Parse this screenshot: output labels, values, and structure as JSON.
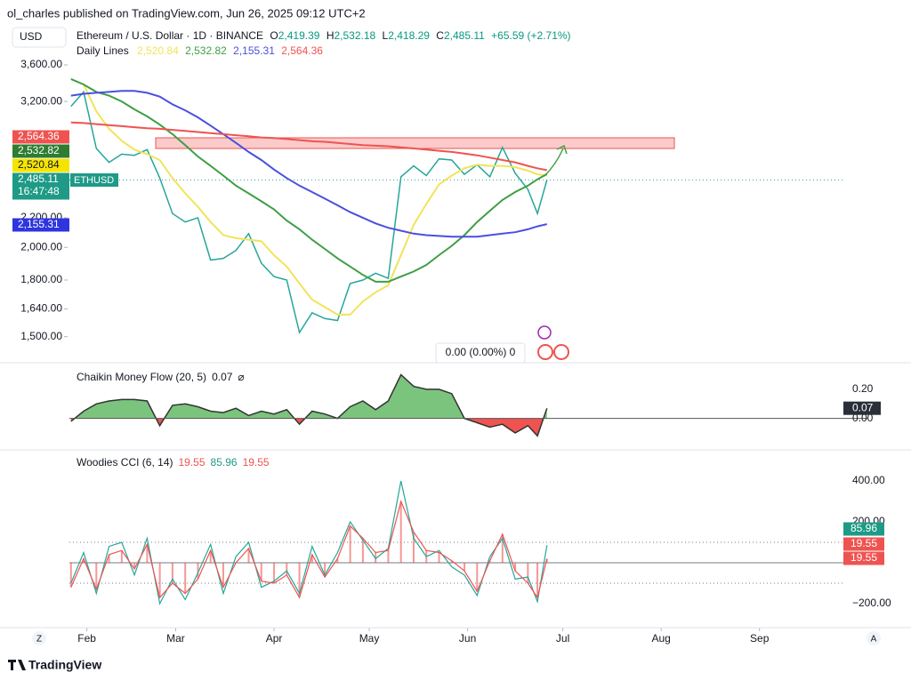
{
  "header": {
    "publisher": "ol_charles published on TradingView.com, Jun 26, 2025 09:12 UTC+2",
    "currency": "USD",
    "brand": "TradingView",
    "left_icon": "Z",
    "right_icon": "A"
  },
  "symbol_bar": {
    "title": "Ethereum / U.S. Dollar · 1D · BINANCE",
    "ohlc": [
      {
        "key": "O",
        "value": "2,419.39"
      },
      {
        "key": "H",
        "value": "2,532.18"
      },
      {
        "key": "L",
        "value": "2,418.29"
      },
      {
        "key": "C",
        "value": "2,485.11"
      }
    ],
    "change": "+65.59 (+2.71%)"
  },
  "legend": {
    "title": "Daily Lines",
    "entries": [
      {
        "label": "2,520.84",
        "color": "#f2e35a"
      },
      {
        "label": "2,532.82",
        "color": "#3f9e45"
      },
      {
        "label": "2,155.31",
        "color": "#4a4fe0"
      },
      {
        "label": "2,564.36",
        "color": "#ef5350"
      }
    ]
  },
  "measure_box": "0.00 (0.00%) 0",
  "chart_data": [
    {
      "type": "line",
      "log_scale": true,
      "grid": false,
      "x": [
        27,
        31,
        35,
        39,
        43,
        47,
        51,
        55,
        59,
        63,
        67,
        71,
        75,
        79,
        83,
        87,
        91,
        95,
        99,
        103,
        107,
        111,
        115,
        119,
        123,
        127,
        131,
        135,
        139,
        143,
        147,
        151,
        155,
        159,
        163,
        167,
        171,
        174,
        177
      ],
      "xlim": [
        26.5,
        271
      ],
      "xticks": [
        {
          "value": 32,
          "label": "Feb"
        },
        {
          "value": 60,
          "label": "Mar"
        },
        {
          "value": 91,
          "label": "Apr"
        },
        {
          "value": 121,
          "label": "May"
        },
        {
          "value": 152,
          "label": "Jun"
        },
        {
          "value": 182,
          "label": "Jul"
        },
        {
          "value": 213,
          "label": "Aug"
        },
        {
          "value": 244,
          "label": "Sep"
        }
      ],
      "ylim": [
        1379,
        4072
      ],
      "yticks": [
        {
          "value": 3600,
          "label": "3,600.00"
        },
        {
          "value": 3200,
          "label": "3,200.00"
        },
        {
          "value": 2200,
          "label": "2,200.00"
        },
        {
          "value": 2000,
          "label": "2,000.00"
        },
        {
          "value": 1800,
          "label": "1,800.00"
        },
        {
          "value": 1640,
          "label": "1,640.00"
        },
        {
          "value": 1500,
          "label": "1,500.00"
        }
      ],
      "series": [
        {
          "name": "ETHUSD",
          "color": "#26a69a",
          "values": [
            3150,
            3300,
            2750,
            2630,
            2700,
            2690,
            2740,
            2500,
            2230,
            2170,
            2200,
            1920,
            1930,
            1980,
            2090,
            1900,
            1820,
            1800,
            1520,
            1620,
            1590,
            1580,
            1780,
            1800,
            1840,
            1810,
            2510,
            2600,
            2520,
            2660,
            2650,
            2530,
            2610,
            2510,
            2760,
            2540,
            2410,
            2230,
            2485
          ]
        },
        {
          "color": "#f2e35a",
          "values": [
            null,
            3380,
            3100,
            2930,
            2820,
            2740,
            2700,
            2650,
            2500,
            2380,
            2280,
            2170,
            2080,
            2060,
            2050,
            2040,
            1950,
            1880,
            1780,
            1690,
            1650,
            1610,
            1610,
            1680,
            1730,
            1770,
            1950,
            2150,
            2300,
            2450,
            2520,
            2580,
            2610,
            2600,
            2600,
            2590,
            2560,
            2530,
            2520.84
          ]
        },
        {
          "color": "#3f9e45",
          "values": [
            3440,
            3380,
            3300,
            3260,
            3200,
            3120,
            3050,
            2970,
            2880,
            2780,
            2680,
            2600,
            2520,
            2440,
            2380,
            2320,
            2260,
            2180,
            2120,
            2050,
            1990,
            1930,
            1880,
            1830,
            1790,
            1790,
            1820,
            1850,
            1890,
            1950,
            2010,
            2080,
            2170,
            2250,
            2330,
            2390,
            2440,
            2490,
            2532.82
          ]
        },
        {
          "color": "#4a4fe0",
          "values": [
            3260,
            3280,
            3290,
            3300,
            3310,
            3310,
            3290,
            3250,
            3170,
            3110,
            3040,
            2960,
            2880,
            2800,
            2720,
            2650,
            2570,
            2500,
            2440,
            2390,
            2340,
            2290,
            2240,
            2200,
            2160,
            2130,
            2110,
            2090,
            2080,
            2075,
            2070,
            2070,
            2070,
            2080,
            2090,
            2100,
            2120,
            2140,
            2155.31
          ]
        },
        {
          "color": "#ef5350",
          "values": [
            2990,
            2985,
            2975,
            2965,
            2955,
            2945,
            2935,
            2930,
            2920,
            2910,
            2900,
            2890,
            2880,
            2870,
            2860,
            2850,
            2845,
            2835,
            2825,
            2815,
            2810,
            2800,
            2790,
            2780,
            2775,
            2770,
            2760,
            2750,
            2740,
            2730,
            2720,
            2705,
            2690,
            2670,
            2650,
            2630,
            2600,
            2580,
            2564.36
          ]
        }
      ],
      "price_tags": [
        {
          "label": "2,564.36",
          "color": "#ef5350"
        },
        {
          "label": "2,532.82",
          "color": "#2e7d32"
        },
        {
          "label": "2,520.84",
          "color": "#f5e400"
        },
        {
          "label": "2,485.11",
          "color": "#1e9a86"
        },
        {
          "label": "2,155.31",
          "color": "#2d34e0"
        }
      ],
      "countdown": "16:47:48",
      "symbol_tag": "ETHUSD"
    },
    {
      "type": "area",
      "title": "Chaikin Money Flow (20, 5)",
      "current": "0.07",
      "icon": "⌀",
      "line_color": "#333333",
      "pos_color": "#7bc47e",
      "neg_color": "#ef5350",
      "ylim": [
        -0.21,
        0.34
      ],
      "yticks": [
        {
          "value": 0.2,
          "label": "0.20"
        },
        {
          "value": 0,
          "label": "0.00"
        }
      ],
      "values": [
        -0.02,
        0.05,
        0.1,
        0.12,
        0.13,
        0.13,
        0.12,
        -0.05,
        0.09,
        0.1,
        0.08,
        0.05,
        0.04,
        0.07,
        0.02,
        0.05,
        0.03,
        0.06,
        -0.04,
        0.05,
        0.03,
        0,
        0.08,
        0.12,
        0.06,
        0.12,
        0.3,
        0.22,
        0.2,
        0.2,
        0.17,
        0,
        -0.03,
        -0.06,
        -0.04,
        -0.1,
        -0.05,
        -0.12,
        0.07
      ],
      "value_tag": {
        "label": "0.07",
        "color": "#2a2e39"
      }
    },
    {
      "type": "line",
      "title": "Woodies CCI (6, 14)",
      "current": [
        {
          "label": "19.55",
          "color": "#ef5350"
        },
        {
          "label": "85.96",
          "color": "#1e9a86"
        },
        {
          "label": "19.55",
          "color": "#ef5350"
        }
      ],
      "ylim": [
        -313,
        535
      ],
      "yticks": [
        {
          "value": 400,
          "label": "400.00"
        },
        {
          "value": 200,
          "label": "200.00"
        },
        {
          "value": -200,
          "label": "−200.00"
        }
      ],
      "bands": [
        100,
        -100
      ],
      "series": [
        {
          "color": "#26a69a",
          "values": [
            -100,
            50,
            -150,
            80,
            100,
            -60,
            120,
            -200,
            -80,
            -180,
            -50,
            90,
            -150,
            30,
            100,
            -120,
            -90,
            -40,
            -150,
            80,
            -60,
            50,
            200,
            110,
            20,
            70,
            400,
            120,
            30,
            60,
            -20,
            -60,
            -160,
            30,
            120,
            -80,
            -70,
            -190,
            85.96
          ]
        },
        {
          "color": "#ef5350",
          "histogram": true,
          "values": [
            -120,
            20,
            -130,
            40,
            60,
            -30,
            90,
            -170,
            -100,
            -150,
            -80,
            60,
            -120,
            0,
            70,
            -90,
            -100,
            -60,
            -170,
            40,
            -70,
            20,
            180,
            120,
            50,
            60,
            300,
            150,
            60,
            50,
            10,
            -40,
            -140,
            10,
            140,
            -40,
            -100,
            -170,
            19.55
          ]
        }
      ],
      "value_tags": [
        {
          "label": "85.96",
          "color": "#1e9a86"
        },
        {
          "label": "19.55",
          "color": "#ef5350"
        },
        {
          "label": "19.55",
          "color": "#ef5350"
        }
      ]
    }
  ]
}
